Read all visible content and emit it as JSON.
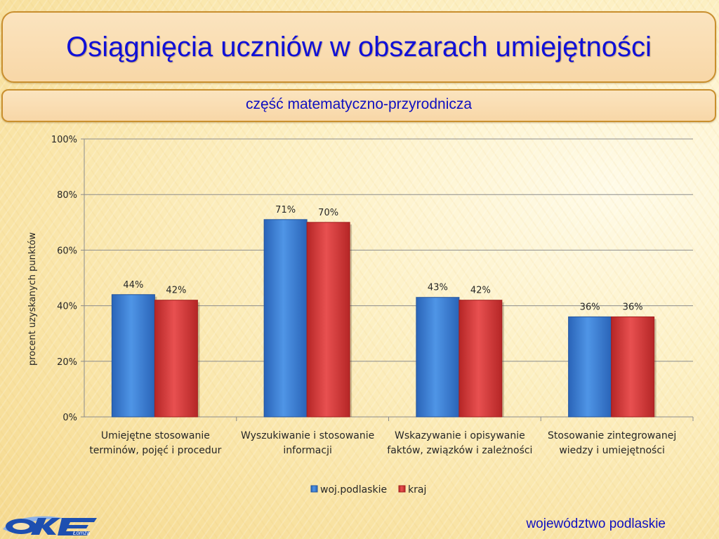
{
  "title": "Osiągnięcia uczniów w obszarach umiejętności",
  "subtitle": "część  matematyczno-przyrodnicza",
  "footer": "województwo podlaskie",
  "logo": {
    "text": "Łomża",
    "icon": "oke-logo-icon"
  },
  "colors": {
    "series1": "#3a7fd4",
    "series2": "#d93a3a",
    "title": "#1010d8"
  },
  "chart_data": {
    "type": "bar",
    "ylabel": "procent uzyskanych punktów",
    "xlabel": "",
    "ylim": [
      0,
      100
    ],
    "yticks": [
      "0%",
      "20%",
      "40%",
      "60%",
      "80%",
      "100%"
    ],
    "grid": true,
    "legend": "bottom",
    "categories": [
      [
        "Umiejętne stosowanie",
        "terminów, pojęć i procedur"
      ],
      [
        "Wyszukiwanie i stosowanie",
        "informacji"
      ],
      [
        "Wskazywanie i opisywanie",
        "faktów, związków i zależności"
      ],
      [
        "Stosowanie zintegrowanej",
        "wiedzy i umiejętności"
      ]
    ],
    "series": [
      {
        "name": "woj.podlaskie",
        "values": [
          44,
          71,
          43,
          36
        ],
        "labels": [
          "44%",
          "71%",
          "43%",
          "36%"
        ]
      },
      {
        "name": "kraj",
        "values": [
          42,
          70,
          42,
          36
        ],
        "labels": [
          "42%",
          "70%",
          "42%",
          "36%"
        ]
      }
    ]
  }
}
